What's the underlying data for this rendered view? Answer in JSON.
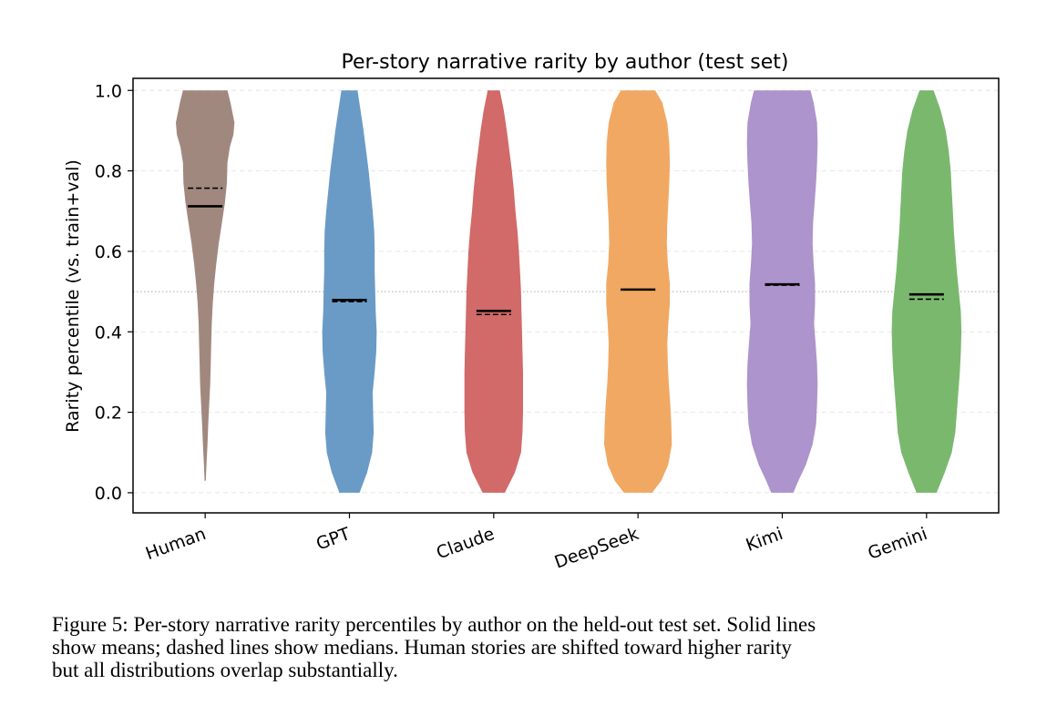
{
  "chart_data": {
    "type": "violin",
    "title": "Per-story narrative rarity by author (test set)",
    "xlabel": "",
    "ylabel": "Rarity percentile (vs. train+val)",
    "ylim": [
      -0.05,
      1.03
    ],
    "yticks": [
      "0.0",
      "0.2",
      "0.4",
      "0.6",
      "0.8",
      "1.0"
    ],
    "reference_line": 0.5,
    "grid": "horizontal dashed",
    "categories": [
      "Human",
      "GPT",
      "Claude",
      "DeepSeek",
      "Kimi",
      "Gemini"
    ],
    "series": [
      {
        "name": "Human",
        "color": "#a1887f",
        "mean": 0.712,
        "median": 0.757,
        "min": 0.03,
        "max": 1.0,
        "density": [
          [
            1.0,
            0.44
          ],
          [
            0.97,
            0.5
          ],
          [
            0.92,
            0.58
          ],
          [
            0.89,
            0.56
          ],
          [
            0.86,
            0.49
          ],
          [
            0.82,
            0.44
          ],
          [
            0.77,
            0.43
          ],
          [
            0.72,
            0.39
          ],
          [
            0.67,
            0.33
          ],
          [
            0.62,
            0.27
          ],
          [
            0.57,
            0.22
          ],
          [
            0.52,
            0.18
          ],
          [
            0.47,
            0.15
          ],
          [
            0.42,
            0.13
          ],
          [
            0.37,
            0.12
          ],
          [
            0.32,
            0.11
          ],
          [
            0.27,
            0.1
          ],
          [
            0.22,
            0.08
          ],
          [
            0.17,
            0.06
          ],
          [
            0.12,
            0.045
          ],
          [
            0.07,
            0.025
          ],
          [
            0.03,
            0.012
          ]
        ]
      },
      {
        "name": "GPT",
        "color": "#6a9bc6",
        "mean": 0.479,
        "median": 0.475,
        "min": 0.0,
        "max": 1.0,
        "density": [
          [
            1.0,
            0.16
          ],
          [
            0.95,
            0.22
          ],
          [
            0.9,
            0.28
          ],
          [
            0.85,
            0.33
          ],
          [
            0.8,
            0.38
          ],
          [
            0.75,
            0.42
          ],
          [
            0.7,
            0.46
          ],
          [
            0.65,
            0.49
          ],
          [
            0.6,
            0.5
          ],
          [
            0.55,
            0.5
          ],
          [
            0.5,
            0.51
          ],
          [
            0.45,
            0.52
          ],
          [
            0.4,
            0.54
          ],
          [
            0.35,
            0.53
          ],
          [
            0.3,
            0.5
          ],
          [
            0.25,
            0.46
          ],
          [
            0.2,
            0.47
          ],
          [
            0.15,
            0.48
          ],
          [
            0.1,
            0.45
          ],
          [
            0.05,
            0.35
          ],
          [
            0.0,
            0.2
          ]
        ]
      },
      {
        "name": "Claude",
        "color": "#d16a68",
        "mean": 0.452,
        "median": 0.443,
        "min": 0.0,
        "max": 1.0,
        "density": [
          [
            1.0,
            0.12
          ],
          [
            0.95,
            0.2
          ],
          [
            0.9,
            0.26
          ],
          [
            0.85,
            0.31
          ],
          [
            0.8,
            0.36
          ],
          [
            0.75,
            0.4
          ],
          [
            0.7,
            0.43
          ],
          [
            0.65,
            0.47
          ],
          [
            0.6,
            0.5
          ],
          [
            0.55,
            0.52
          ],
          [
            0.5,
            0.54
          ],
          [
            0.45,
            0.55
          ],
          [
            0.4,
            0.56
          ],
          [
            0.35,
            0.57
          ],
          [
            0.3,
            0.58
          ],
          [
            0.25,
            0.58
          ],
          [
            0.2,
            0.58
          ],
          [
            0.15,
            0.57
          ],
          [
            0.1,
            0.54
          ],
          [
            0.05,
            0.42
          ],
          [
            0.0,
            0.22
          ]
        ]
      },
      {
        "name": "DeepSeek",
        "color": "#f1a863",
        "mean": 0.505,
        "median": 0.505,
        "min": 0.0,
        "max": 1.0,
        "density": [
          [
            1.0,
            0.34
          ],
          [
            0.97,
            0.48
          ],
          [
            0.92,
            0.58
          ],
          [
            0.87,
            0.62
          ],
          [
            0.82,
            0.63
          ],
          [
            0.77,
            0.62
          ],
          [
            0.72,
            0.6
          ],
          [
            0.67,
            0.58
          ],
          [
            0.62,
            0.57
          ],
          [
            0.57,
            0.59
          ],
          [
            0.52,
            0.63
          ],
          [
            0.47,
            0.63
          ],
          [
            0.42,
            0.6
          ],
          [
            0.37,
            0.58
          ],
          [
            0.32,
            0.59
          ],
          [
            0.27,
            0.61
          ],
          [
            0.22,
            0.64
          ],
          [
            0.17,
            0.66
          ],
          [
            0.12,
            0.67
          ],
          [
            0.07,
            0.6
          ],
          [
            0.03,
            0.46
          ],
          [
            0.0,
            0.28
          ]
        ]
      },
      {
        "name": "Kimi",
        "color": "#ad94cc",
        "mean": 0.518,
        "median": 0.516,
        "min": 0.0,
        "max": 1.0,
        "density": [
          [
            1.0,
            0.56
          ],
          [
            0.97,
            0.62
          ],
          [
            0.92,
            0.69
          ],
          [
            0.87,
            0.7
          ],
          [
            0.82,
            0.69
          ],
          [
            0.77,
            0.67
          ],
          [
            0.72,
            0.64
          ],
          [
            0.67,
            0.61
          ],
          [
            0.62,
            0.6
          ],
          [
            0.57,
            0.62
          ],
          [
            0.52,
            0.65
          ],
          [
            0.47,
            0.65
          ],
          [
            0.42,
            0.63
          ],
          [
            0.37,
            0.66
          ],
          [
            0.32,
            0.69
          ],
          [
            0.27,
            0.7
          ],
          [
            0.22,
            0.69
          ],
          [
            0.17,
            0.67
          ],
          [
            0.12,
            0.6
          ],
          [
            0.07,
            0.47
          ],
          [
            0.03,
            0.32
          ],
          [
            0.0,
            0.22
          ]
        ]
      },
      {
        "name": "Gemini",
        "color": "#7ab86e",
        "mean": 0.493,
        "median": 0.481,
        "min": 0.0,
        "max": 1.0,
        "density": [
          [
            1.0,
            0.14
          ],
          [
            0.95,
            0.28
          ],
          [
            0.9,
            0.38
          ],
          [
            0.85,
            0.44
          ],
          [
            0.8,
            0.48
          ],
          [
            0.75,
            0.5
          ],
          [
            0.7,
            0.52
          ],
          [
            0.65,
            0.54
          ],
          [
            0.6,
            0.57
          ],
          [
            0.55,
            0.6
          ],
          [
            0.5,
            0.64
          ],
          [
            0.45,
            0.68
          ],
          [
            0.4,
            0.69
          ],
          [
            0.35,
            0.68
          ],
          [
            0.3,
            0.66
          ],
          [
            0.25,
            0.63
          ],
          [
            0.2,
            0.6
          ],
          [
            0.15,
            0.57
          ],
          [
            0.1,
            0.5
          ],
          [
            0.05,
            0.36
          ],
          [
            0.0,
            0.2
          ]
        ]
      }
    ]
  },
  "caption": {
    "line1": "Figure 5: Per-story narrative rarity percentiles by author on the held-out test set. Solid lines",
    "line2": "show means; dashed lines show medians. Human stories are shifted toward higher rarity",
    "line3": "but all distributions overlap substantially."
  }
}
